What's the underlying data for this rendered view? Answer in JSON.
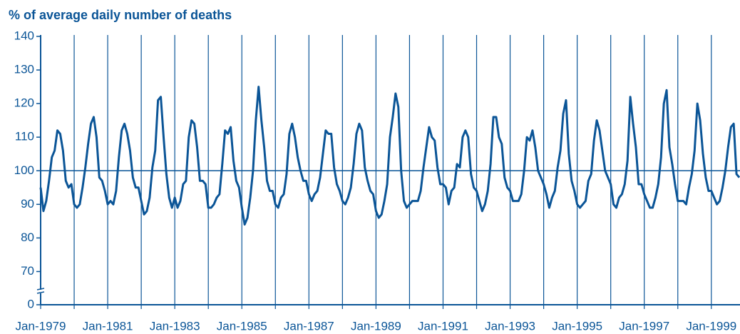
{
  "chart_data": {
    "type": "line",
    "title": "% of average daily number of deaths",
    "categories": [
      "Jan-1979",
      null,
      null,
      null,
      null,
      null,
      null,
      null,
      null,
      null,
      null,
      null,
      null,
      null,
      null,
      null,
      null,
      null,
      null,
      null,
      null,
      null,
      null,
      null,
      "Jan-1981",
      null,
      null,
      null,
      null,
      null,
      null,
      null,
      null,
      null,
      null,
      null,
      null,
      null,
      null,
      null,
      null,
      null,
      null,
      null,
      null,
      null,
      null,
      null,
      "Jan-1983",
      null,
      null,
      null,
      null,
      null,
      null,
      null,
      null,
      null,
      null,
      null,
      null,
      null,
      null,
      null,
      null,
      null,
      null,
      null,
      null,
      null,
      null,
      null,
      "Jan-1985",
      null,
      null,
      null,
      null,
      null,
      null,
      null,
      null,
      null,
      null,
      null,
      null,
      null,
      null,
      null,
      null,
      null,
      null,
      null,
      null,
      null,
      null,
      null,
      "Jan-1987",
      null,
      null,
      null,
      null,
      null,
      null,
      null,
      null,
      null,
      null,
      null,
      null,
      null,
      null,
      null,
      null,
      null,
      null,
      null,
      null,
      null,
      null,
      null,
      "Jan-1989",
      null,
      null,
      null,
      null,
      null,
      null,
      null,
      null,
      null,
      null,
      null,
      null,
      null,
      null,
      null,
      null,
      null,
      null,
      null,
      null,
      null,
      null,
      null,
      "Jan-1991",
      null,
      null,
      null,
      null,
      null,
      null,
      null,
      null,
      null,
      null,
      null,
      null,
      null,
      null,
      null,
      null,
      null,
      null,
      null,
      null,
      null,
      null,
      null,
      "Jan-1993",
      null,
      null,
      null,
      null,
      null,
      null,
      null,
      null,
      null,
      null,
      null,
      null,
      null,
      null,
      null,
      null,
      null,
      null,
      null,
      null,
      null,
      null,
      null,
      "Jan-1995",
      null,
      null,
      null,
      null,
      null,
      null,
      null,
      null,
      null,
      null,
      null,
      null,
      null,
      null,
      null,
      null,
      null,
      null,
      null,
      null,
      null,
      null,
      null,
      "Jan-1997",
      null,
      null,
      null,
      null,
      null,
      null,
      null,
      null,
      null,
      null,
      null,
      null,
      null,
      null,
      null,
      null,
      null,
      null,
      null,
      null,
      null,
      null,
      null,
      "Jan-1999",
      null,
      null,
      null,
      null,
      null,
      null,
      null,
      null,
      null,
      null
    ],
    "values": [
      95,
      88,
      91,
      97,
      104,
      106,
      112,
      111,
      106,
      97,
      95,
      96,
      90,
      89,
      90,
      95,
      101,
      108,
      114,
      116,
      110,
      98,
      97,
      94,
      90,
      91,
      90,
      94,
      104,
      112,
      114,
      111,
      106,
      98,
      95,
      95,
      91,
      87,
      88,
      92,
      101,
      106,
      121,
      122,
      110,
      99,
      92,
      89,
      92,
      89,
      91,
      96,
      97,
      110,
      115,
      114,
      107,
      97,
      97,
      96,
      89,
      89,
      90,
      92,
      93,
      102,
      112,
      111,
      113,
      103,
      97,
      95,
      89,
      84,
      86,
      92,
      100,
      115,
      125,
      115,
      107,
      97,
      94,
      94,
      90,
      89,
      92,
      93,
      99,
      111,
      114,
      110,
      104,
      100,
      97,
      97,
      93,
      91,
      93,
      94,
      98,
      105,
      112,
      111,
      111,
      101,
      96,
      94,
      91,
      90,
      92,
      95,
      102,
      111,
      114,
      112,
      101,
      97,
      94,
      93,
      88,
      86,
      87,
      91,
      96,
      110,
      116,
      123,
      119,
      100,
      91,
      89,
      90,
      91,
      91,
      91,
      94,
      101,
      107,
      113,
      110,
      109,
      101,
      96,
      96,
      95,
      90,
      94,
      95,
      102,
      101,
      110,
      112,
      110,
      99,
      95,
      94,
      91,
      88,
      90,
      94,
      102,
      116,
      116,
      110,
      108,
      98,
      95,
      94,
      91,
      91,
      91,
      93,
      100,
      110,
      109,
      112,
      107,
      100,
      98,
      96,
      93,
      89,
      92,
      94,
      101,
      106,
      117,
      121,
      105,
      97,
      94,
      90,
      89,
      90,
      91,
      97,
      99,
      109,
      115,
      112,
      106,
      100,
      98,
      96,
      90,
      89,
      92,
      93,
      96,
      103,
      122,
      114,
      107,
      96,
      96,
      93,
      91,
      89,
      89,
      92,
      96,
      104,
      120,
      124,
      107,
      102,
      96,
      91,
      91,
      91,
      90,
      95,
      99,
      106,
      120,
      115,
      105,
      98,
      94,
      94,
      92,
      90,
      91,
      95,
      100,
      107,
      113,
      114,
      99,
      98
    ],
    "color": "#0b5597",
    "ylim": [
      0,
      140
    ],
    "yticks": [
      0,
      70,
      80,
      90,
      100,
      110,
      120,
      130,
      140
    ],
    "axis_break": [
      0,
      65
    ],
    "reference_line": 100,
    "vgrid_every": 12
  }
}
